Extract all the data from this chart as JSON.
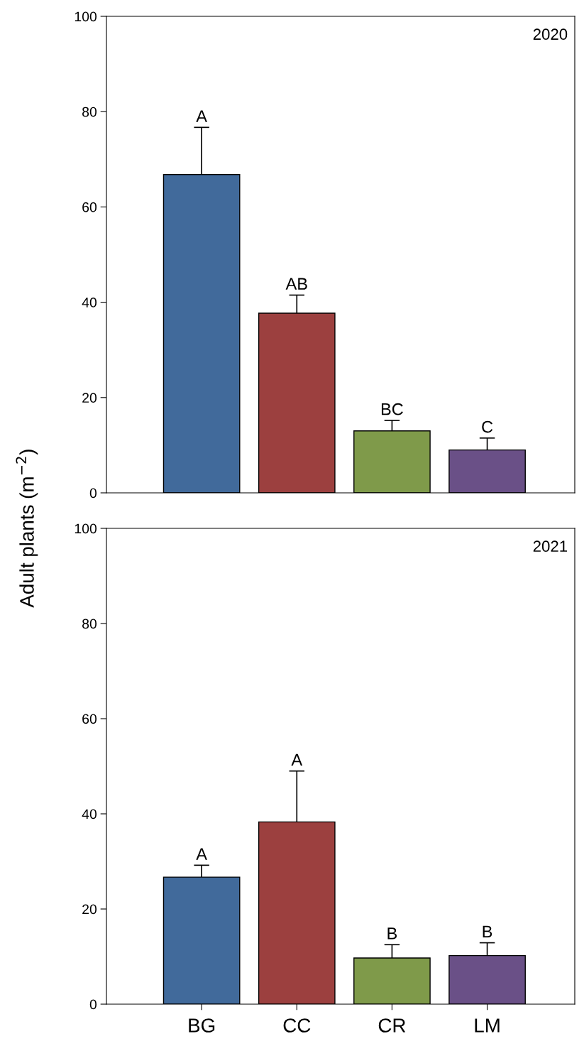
{
  "chart_data": [
    {
      "type": "bar",
      "title": "2020",
      "ylabel": "Adult plants (m$^{−2}$)",
      "categories": [
        "BG",
        "CC",
        "CR",
        "LM"
      ],
      "values": [
        66.8,
        37.7,
        13.0,
        9.0
      ],
      "errors": [
        [
          66.8,
          76.7
        ],
        [
          37.7,
          41.5
        ],
        [
          13.0,
          15.2
        ],
        [
          9.0,
          11.5
        ]
      ],
      "colors": [
        "#416a9b",
        "#9c403f",
        "#7f9a4a",
        "#6a5087"
      ],
      "ylim": [
        0,
        100
      ],
      "yticks": [
        0,
        20,
        40,
        60,
        80,
        100
      ],
      "tick_labels": "y",
      "grid": false,
      "annotations": [
        {
          "text": "A",
          "x": "BG",
          "y": 76.7
        },
        {
          "text": "AB",
          "x": "CC",
          "y": 41.5
        },
        {
          "text": "BC",
          "x": "CR",
          "y": 15.2
        },
        {
          "text": "C",
          "x": "LM",
          "y": 11.5
        }
      ]
    },
    {
      "type": "bar",
      "title": "2021",
      "categories": [
        "BG",
        "CC",
        "CR",
        "LM"
      ],
      "values": [
        26.7,
        38.3,
        9.7,
        10.2
      ],
      "errors": [
        [
          26.7,
          29.2
        ],
        [
          38.3,
          49.0
        ],
        [
          9.7,
          12.5
        ],
        [
          10.2,
          12.9
        ]
      ],
      "colors": [
        "#416a9b",
        "#9c403f",
        "#7f9a4a",
        "#6a5087"
      ],
      "ylim": [
        0,
        100
      ],
      "yticks": [
        0,
        20,
        40,
        60,
        80,
        100
      ],
      "grid": false,
      "annotations": [
        {
          "text": "A",
          "x": "BG",
          "y": 29.2
        },
        {
          "text": "A",
          "x": "CC",
          "y": 49.0
        },
        {
          "text": "B",
          "x": "CR",
          "y": 12.5
        },
        {
          "text": "B",
          "x": "LM",
          "y": 12.9
        }
      ]
    }
  ]
}
